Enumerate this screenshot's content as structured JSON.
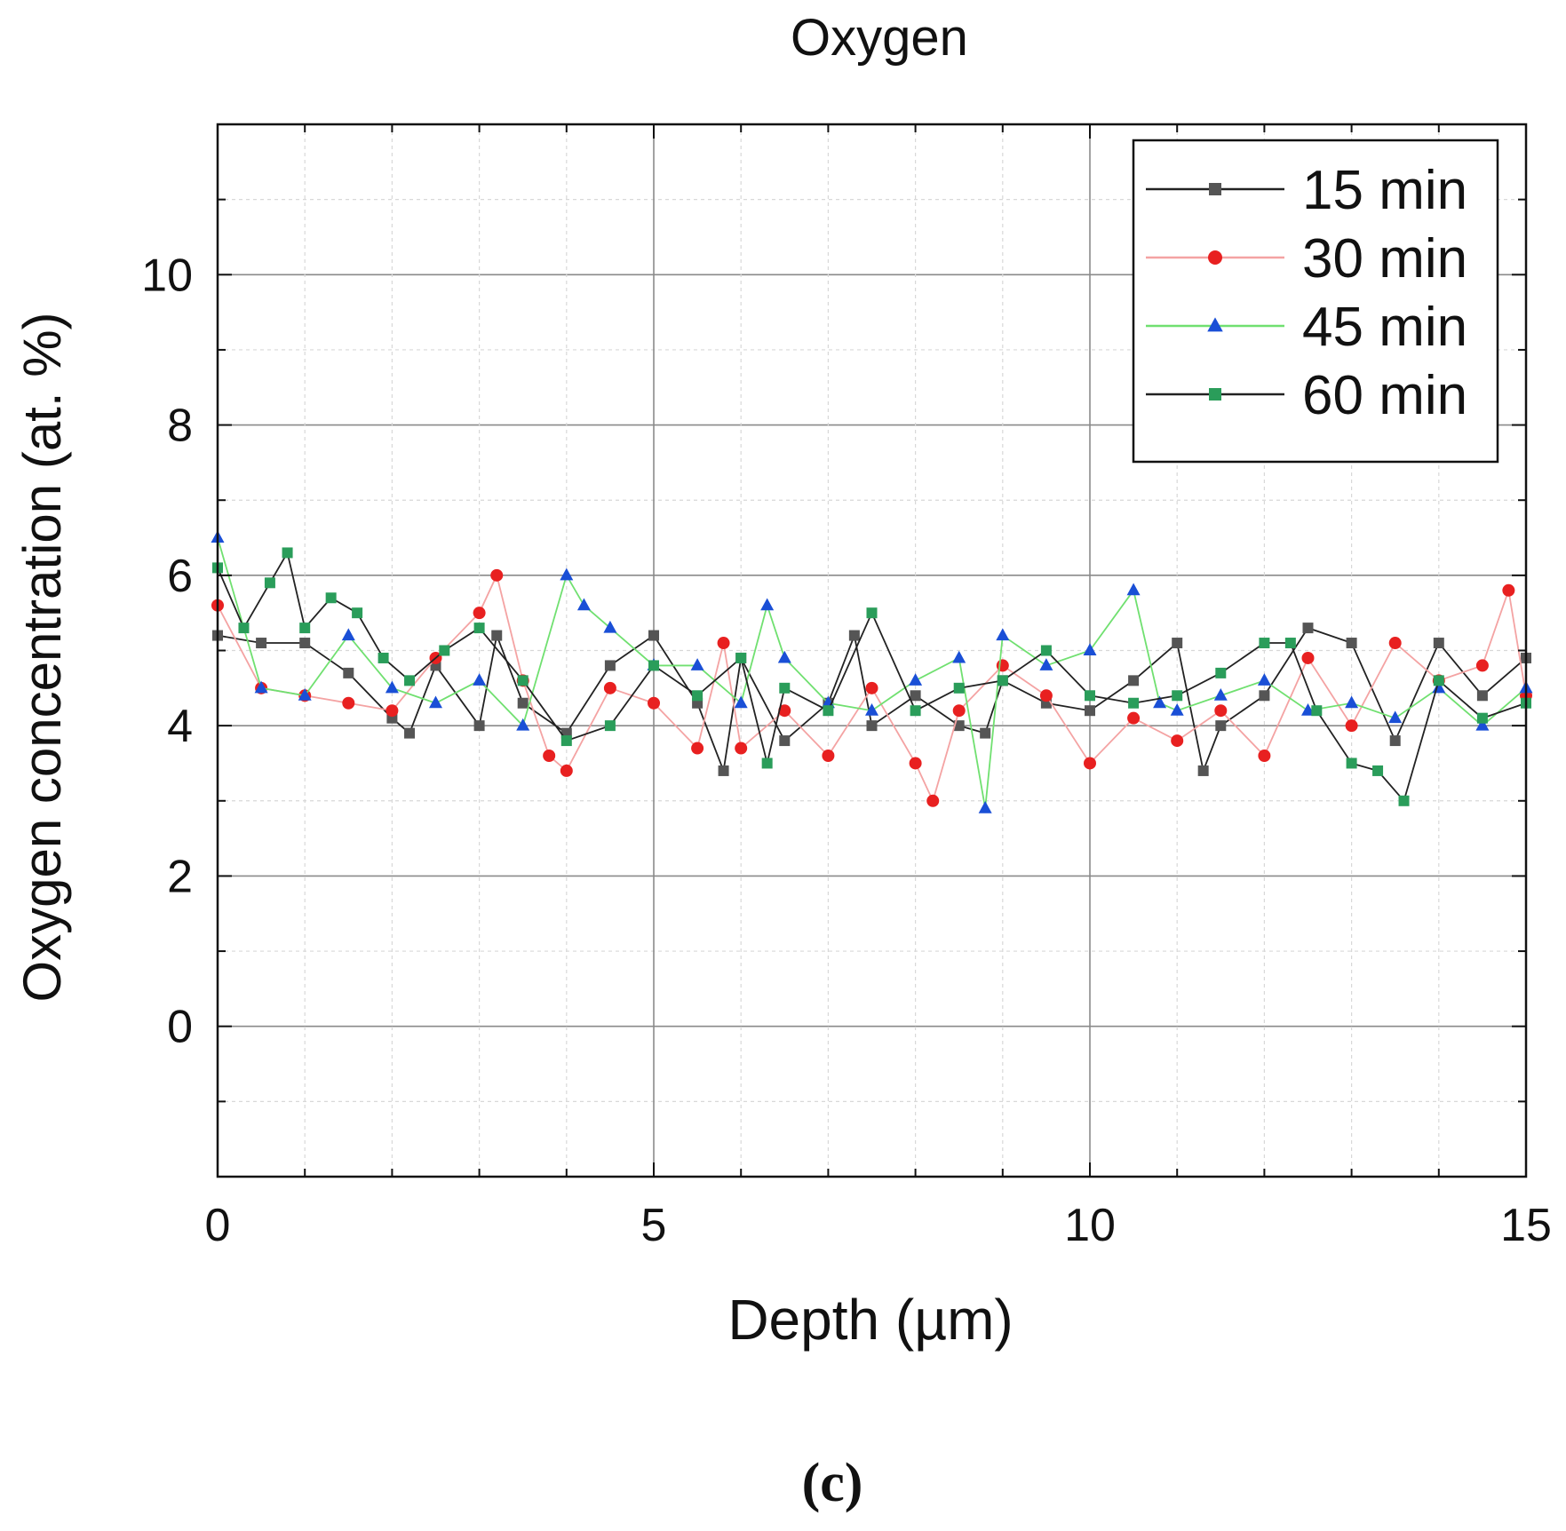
{
  "chart_data": {
    "type": "line",
    "title": "Oxygen",
    "xlabel": "Depth (µm)",
    "ylabel": "Oxygen concentration (at. %)",
    "caption": "(c)",
    "xlim": [
      0,
      15
    ],
    "ylim": [
      -2,
      12
    ],
    "x_ticks": [
      0,
      5,
      10,
      15
    ],
    "y_ticks": [
      0,
      2,
      4,
      6,
      8,
      10
    ],
    "grid": true,
    "legend_position": "top-right",
    "series": [
      {
        "name": "15 min",
        "line_color": "#222222",
        "marker_color": "#555555",
        "marker": "square",
        "x": [
          0,
          0.5,
          1,
          1.5,
          2,
          2.2,
          2.5,
          3,
          3.2,
          3.5,
          4,
          4.5,
          5,
          5.5,
          5.8,
          6,
          6.5,
          7,
          7.3,
          7.5,
          8,
          8.5,
          8.8,
          9,
          9.5,
          10,
          10.5,
          11,
          11.3,
          11.5,
          12,
          12.5,
          13,
          13.5,
          14,
          14.5,
          15
        ],
        "y": [
          5.2,
          5.1,
          5.1,
          4.7,
          4.1,
          3.9,
          4.8,
          4.0,
          5.2,
          4.3,
          3.9,
          4.8,
          5.2,
          4.3,
          3.4,
          4.9,
          3.8,
          4.3,
          5.2,
          4.0,
          4.4,
          4.0,
          3.9,
          4.6,
          4.3,
          4.2,
          4.6,
          5.1,
          3.4,
          4.0,
          4.4,
          5.3,
          5.1,
          3.8,
          5.1,
          4.4,
          4.9
        ]
      },
      {
        "name": "30 min",
        "line_color": "#f4a3a3",
        "marker_color": "#e82020",
        "marker": "circle",
        "x": [
          0,
          0.5,
          1,
          1.5,
          2,
          2.5,
          3,
          3.2,
          3.5,
          3.8,
          4,
          4.5,
          5,
          5.5,
          5.8,
          6,
          6.5,
          7,
          7.5,
          8,
          8.2,
          8.5,
          9,
          9.5,
          10,
          10.5,
          11,
          11.5,
          12,
          12.5,
          13,
          13.5,
          14,
          14.5,
          14.8,
          15
        ],
        "y": [
          5.6,
          4.5,
          4.4,
          4.3,
          4.2,
          4.9,
          5.5,
          6.0,
          4.6,
          3.6,
          3.4,
          4.5,
          4.3,
          3.7,
          5.1,
          3.7,
          4.2,
          3.6,
          4.5,
          3.5,
          3.0,
          4.2,
          4.8,
          4.4,
          3.5,
          4.1,
          3.8,
          4.2,
          3.6,
          4.9,
          4.0,
          5.1,
          4.6,
          4.8,
          5.8,
          4.4
        ]
      },
      {
        "name": "45 min",
        "line_color": "#70e070",
        "marker_color": "#1a4fd6",
        "marker": "triangle",
        "x": [
          0,
          0.5,
          1,
          1.5,
          2,
          2.5,
          3,
          3.5,
          4,
          4.2,
          4.5,
          5,
          5.5,
          6,
          6.3,
          6.5,
          7,
          7.5,
          8,
          8.5,
          8.8,
          9,
          9.5,
          10,
          10.5,
          10.8,
          11,
          11.5,
          12,
          12.5,
          13,
          13.5,
          14,
          14.5,
          15
        ],
        "y": [
          6.5,
          4.5,
          4.4,
          5.2,
          4.5,
          4.3,
          4.6,
          4.0,
          6.0,
          5.6,
          5.3,
          4.8,
          4.8,
          4.3,
          5.6,
          4.9,
          4.3,
          4.2,
          4.6,
          4.9,
          2.9,
          5.2,
          4.8,
          5.0,
          5.8,
          4.3,
          4.2,
          4.4,
          4.6,
          4.2,
          4.3,
          4.1,
          4.5,
          4.0,
          4.5
        ]
      },
      {
        "name": "60 min",
        "line_color": "#222222",
        "marker_color": "#2a9d5a",
        "marker": "square",
        "x": [
          0,
          0.3,
          0.6,
          0.8,
          1,
          1.3,
          1.6,
          1.9,
          2.2,
          2.6,
          3,
          3.5,
          4,
          4.5,
          5,
          5.5,
          6,
          6.3,
          6.5,
          7,
          7.5,
          8,
          8.5,
          9,
          9.5,
          10,
          10.5,
          11,
          11.5,
          12,
          12.3,
          12.6,
          13,
          13.3,
          13.6,
          14,
          14.5,
          15
        ],
        "y": [
          6.1,
          5.3,
          5.9,
          6.3,
          5.3,
          5.7,
          5.5,
          4.9,
          4.6,
          5.0,
          5.3,
          4.6,
          3.8,
          4.0,
          4.8,
          4.4,
          4.9,
          3.5,
          4.5,
          4.2,
          5.5,
          4.2,
          4.5,
          4.6,
          5.0,
          4.4,
          4.3,
          4.4,
          4.7,
          5.1,
          5.1,
          4.2,
          3.5,
          3.4,
          3.0,
          4.6,
          4.1,
          4.3
        ]
      }
    ]
  }
}
